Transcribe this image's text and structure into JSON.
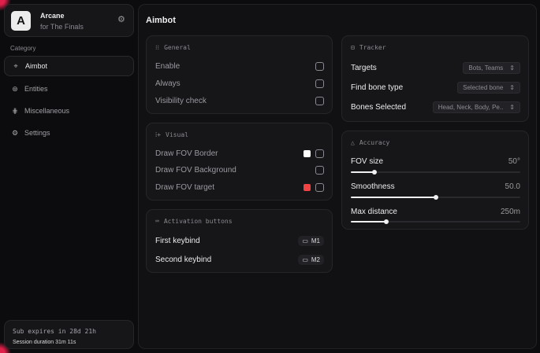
{
  "sidebar": {
    "app_name": "Arcane",
    "app_subtitle": "for The Finals",
    "logo_letter": "A",
    "category_label": "Category",
    "items": [
      {
        "label": "Aimbot",
        "icon": "crosshair-icon",
        "active": true
      },
      {
        "label": "Entities",
        "icon": "entities-icon"
      },
      {
        "label": "Miscellaneous",
        "icon": "misc-icon"
      },
      {
        "label": "Settings",
        "icon": "gear-icon"
      }
    ],
    "sub_expires": "Sub expires in 28d 21h",
    "session": "Session duration 31m 11s"
  },
  "main": {
    "title": "Aimbot",
    "general": {
      "title": "General",
      "rows": [
        {
          "label": "Enable",
          "checked": false
        },
        {
          "label": "Always",
          "checked": false
        },
        {
          "label": "Visibility check",
          "checked": false
        }
      ]
    },
    "visual": {
      "title": "Visual",
      "rows": [
        {
          "label": "Draw FOV Border",
          "color": "#ffffff",
          "checked": false
        },
        {
          "label": "Draw FOV Background",
          "checked": false
        },
        {
          "label": "Draw FOV target",
          "color": "#f04444",
          "checked": false
        }
      ]
    },
    "activation": {
      "title": "Activation buttons",
      "rows": [
        {
          "label": "First keybind",
          "key": "M1"
        },
        {
          "label": "Second keybind",
          "key": "M2"
        }
      ]
    },
    "tracker": {
      "title": "Tracker",
      "rows": [
        {
          "label": "Targets",
          "value": "Bots, Teams"
        },
        {
          "label": "Find bone type",
          "value": "Selected bone"
        },
        {
          "label": "Bones Selected",
          "value": "Head, Neck, Body, Pe.."
        }
      ]
    },
    "accuracy": {
      "title": "Accuracy",
      "sliders": [
        {
          "label": "FOV size",
          "value": "50°",
          "percent": 14
        },
        {
          "label": "Smoothness",
          "value": "50.0",
          "percent": 50
        },
        {
          "label": "Max distance",
          "value": "250m",
          "percent": 21
        }
      ]
    }
  },
  "colors": {
    "accent": "#e0204a"
  }
}
